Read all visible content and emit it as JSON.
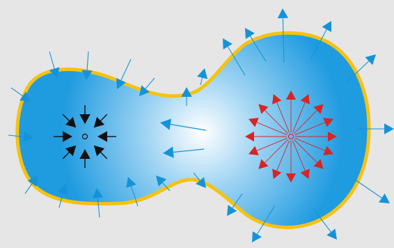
{
  "diagram": {
    "colors": {
      "background": "#e6e6e6",
      "rim": "#f5c211",
      "fill_outer": "#1f9be0",
      "fill_center": "#ffffff",
      "outer_arrows": "#1593d8",
      "flow_arrows": "#1593d8",
      "inward_arrows": "#111111",
      "outward_arrows": "#d92424"
    },
    "icons": {
      "left_center": "small-circle-icon",
      "right_center": "small-circle-icon"
    }
  }
}
